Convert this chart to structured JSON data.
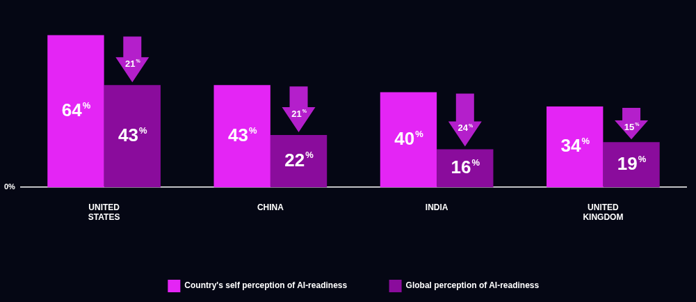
{
  "chart_data": {
    "type": "bar",
    "categories": [
      "UNITED STATES",
      "CHINA",
      "INDIA",
      "UNITED KINGDOM"
    ],
    "series": [
      {
        "name": "Country's self perception of AI-readiness",
        "color": "#e425f5",
        "values": [
          64,
          43,
          40,
          34
        ],
        "value_labels": [
          "64%",
          "43%",
          "40%",
          "34%"
        ]
      },
      {
        "name": "Global perception of AI-readiness",
        "color": "#8a0c9c",
        "values": [
          43,
          22,
          16,
          19
        ],
        "value_labels": [
          "43%",
          "22%",
          "16%",
          "19%"
        ]
      }
    ],
    "legend": "bottom",
    "annotations": [
      "0%",
      {
        "text": "21%",
        "x": "UNITED STATES",
        "y": 43
      },
      {
        "text": "21%",
        "x": "CHINA",
        "y": 22
      },
      {
        "text": "24%",
        "x": "INDIA",
        "y": 16
      },
      {
        "text": "15%",
        "x": "UNITED KINGDOM",
        "y": 19
      }
    ]
  }
}
